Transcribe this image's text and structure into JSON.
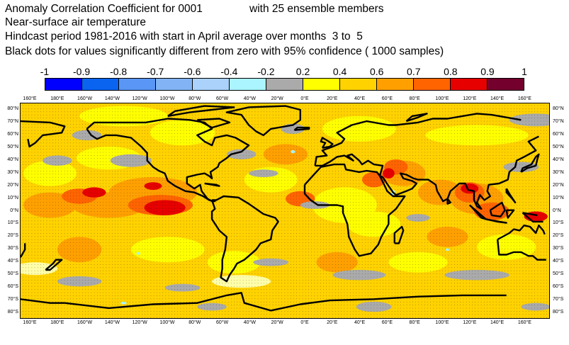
{
  "header": {
    "title_left": "Anomaly Correlation Coefficient for 0001",
    "title_right": "with 25 ensemble members",
    "variable": "Near-surface air temperature",
    "hindcast": "Hindcast period 1981-2016 with start in April average over months  3 to  5",
    "significance": "Black dots for values significantly different from zero with 95% confidence ( 1000 samples)"
  },
  "colorbar": {
    "labels": [
      "-1",
      "-0.9",
      "-0.8",
      "-0.7",
      "-0.6",
      "-0.4",
      "-0.2",
      "0.2",
      "0.4",
      "0.6",
      "0.7",
      "0.8",
      "0.9",
      "1"
    ],
    "colors": [
      "#0000ff",
      "#0a64f0",
      "#5a96f5",
      "#82b4f5",
      "#aad2fa",
      "#aaf5ff",
      "#aaaaaa",
      "#ffffaa",
      "#ffff00",
      "#ffd200",
      "#ffa000",
      "#ff6400",
      "#e60000",
      "#73002d"
    ]
  },
  "map": {
    "lon_labels": [
      "160°E",
      "180°E",
      "160°W",
      "140°W",
      "120°W",
      "100°W",
      "80°W",
      "60°W",
      "40°W",
      "20°W",
      "0°E",
      "20°E",
      "40°E",
      "60°E",
      "80°E",
      "100°E",
      "120°E",
      "140°E",
      "160°E"
    ],
    "lat_labels": [
      "80°N",
      "70°N",
      "60°N",
      "50°N",
      "40°N",
      "30°N",
      "20°N",
      "10°N",
      "0°N",
      "10°S",
      "20°S",
      "30°S",
      "40°S",
      "50°S",
      "60°S",
      "70°S",
      "80°S"
    ],
    "background_color": "#ffd200",
    "land_outline_color": "#000000"
  }
}
